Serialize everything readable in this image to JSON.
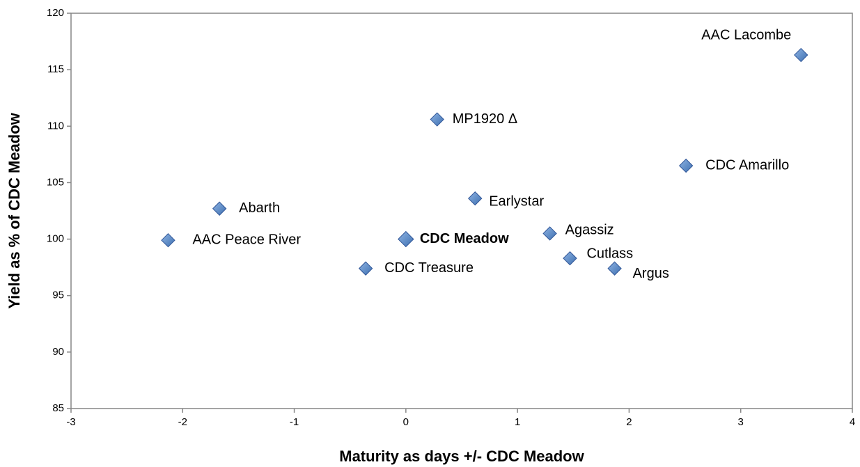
{
  "chart_data": {
    "type": "scatter",
    "x_label": "Maturity as days +/- CDC Meadow",
    "y_label": "Yield as % of CDC Meadow",
    "labels": [
      "AAC Lacombe",
      "MP1920 Δ",
      "CDC Amarillo",
      "Abarth",
      "Earlystar",
      "AAC Peace River",
      "CDC Meadow",
      "Agassiz",
      "Cutlass",
      "Argus",
      "CDC Treasure"
    ],
    "x": [
      3.54,
      0.28,
      2.51,
      -1.67,
      0.62,
      -2.13,
      0,
      1.29,
      1.47,
      1.87,
      -0.36
    ],
    "y": [
      116.3,
      110.6,
      106.5,
      102.7,
      103.6,
      99.9,
      100,
      100.5,
      98.3,
      97.4,
      97.4
    ],
    "bold": [
      false,
      false,
      false,
      false,
      false,
      false,
      true,
      false,
      false,
      false,
      false
    ],
    "color": "#4f81bd",
    "xlim": [
      -3,
      4
    ],
    "xticks": [
      -3,
      -2,
      -1,
      0,
      1,
      2,
      3,
      4
    ],
    "ylim": [
      85,
      120
    ],
    "yticks": [
      85,
      90,
      95,
      100,
      105,
      110,
      115,
      120
    ],
    "grid": false
  }
}
